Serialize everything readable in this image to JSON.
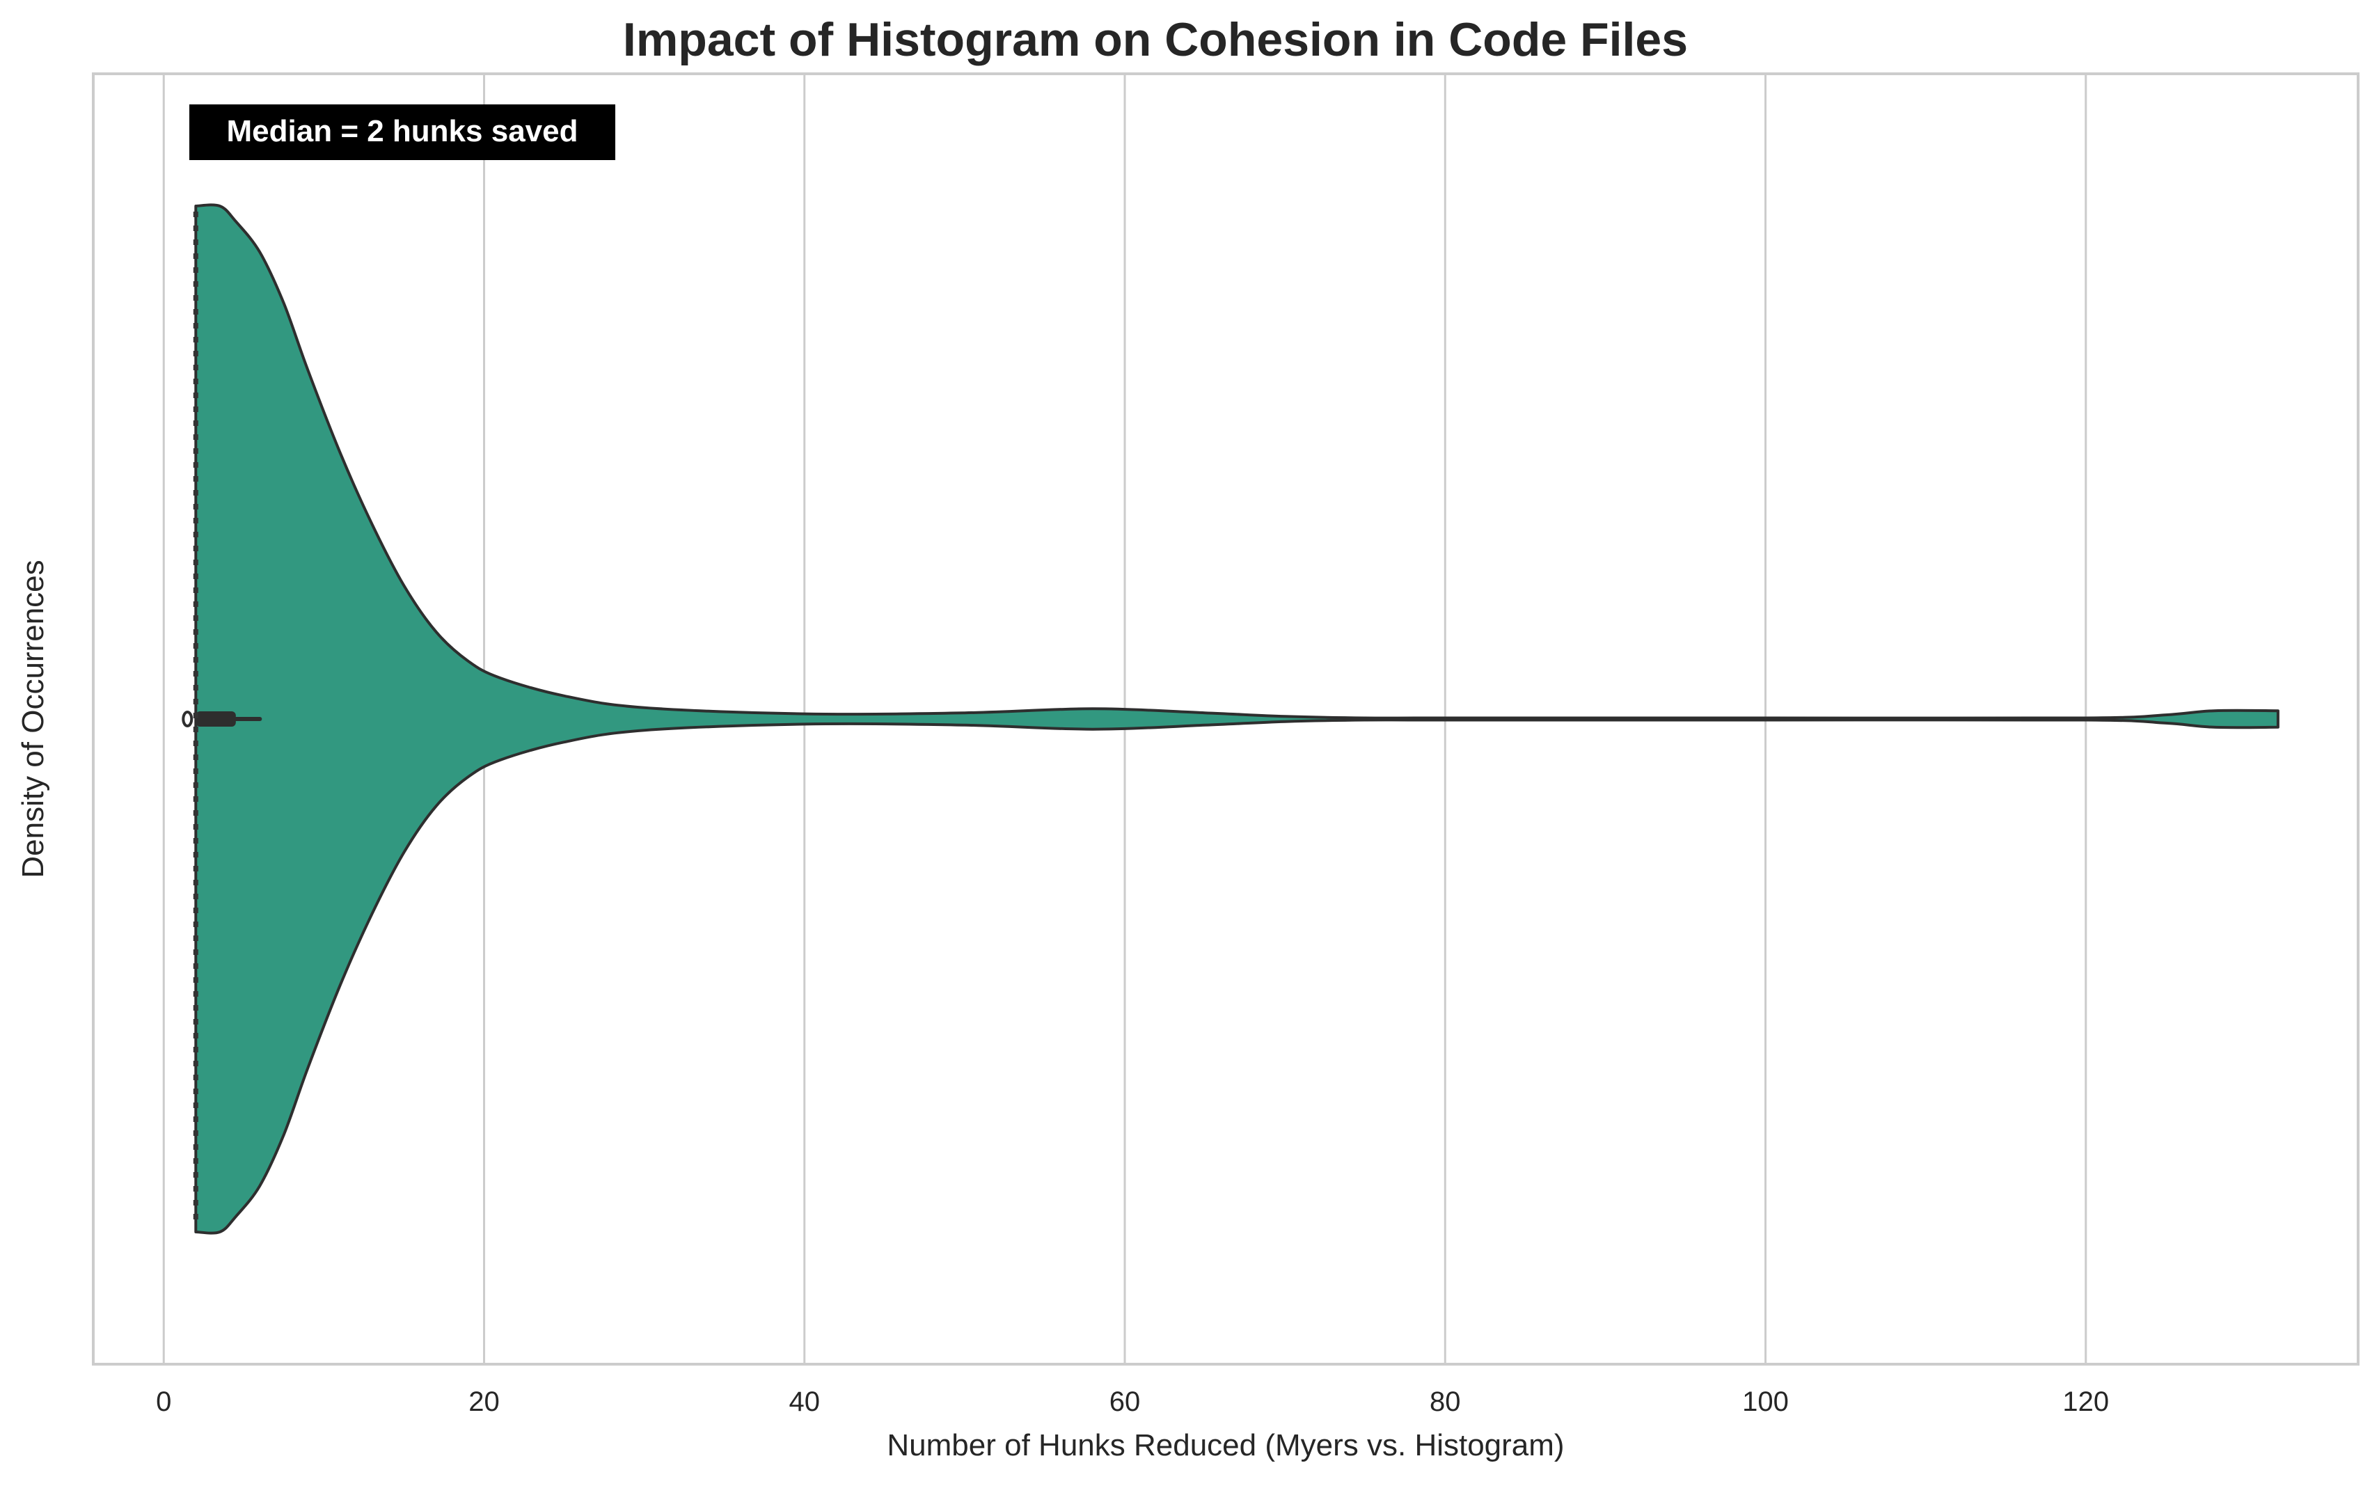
{
  "chart_data": {
    "type": "violin",
    "title": "Impact of Histogram on Cohesion in Code Files",
    "xlabel": "Number of Hunks Reduced (Myers vs. Histogram)",
    "ylabel": "Density of Occurrences",
    "xlim": [
      -4.4,
      137
    ],
    "x_ticks": [
      0,
      20,
      40,
      60,
      80,
      100,
      120
    ],
    "tick_labels": [
      "0",
      "20",
      "40",
      "60",
      "80",
      "100",
      "120"
    ],
    "grid": "vertical",
    "orientation": "horizontal",
    "annotation": "Median = 2 hunks saved",
    "median_line_x": 2,
    "min": 2,
    "max": 132,
    "box": {
      "q1": 2,
      "q3": 4.5,
      "whisker_high": 6,
      "median": 2
    },
    "density_profile": {
      "x": [
        2,
        3.5,
        4.5,
        6,
        7.5,
        9,
        11,
        13,
        15,
        17,
        19,
        21,
        25,
        30,
        40,
        50,
        58,
        65,
        70,
        75,
        80,
        100,
        120,
        125,
        128,
        132
      ],
      "half_width": [
        1.0,
        1.0,
        0.97,
        0.91,
        0.81,
        0.68,
        0.52,
        0.38,
        0.26,
        0.17,
        0.113,
        0.08,
        0.045,
        0.022,
        0.01,
        0.012,
        0.02,
        0.012,
        0.005,
        0.002,
        0.002,
        0.002,
        0.002,
        0.008,
        0.016,
        0.016
      ]
    },
    "fill_color": "#329880",
    "edge_color": "#2e2e2e"
  }
}
